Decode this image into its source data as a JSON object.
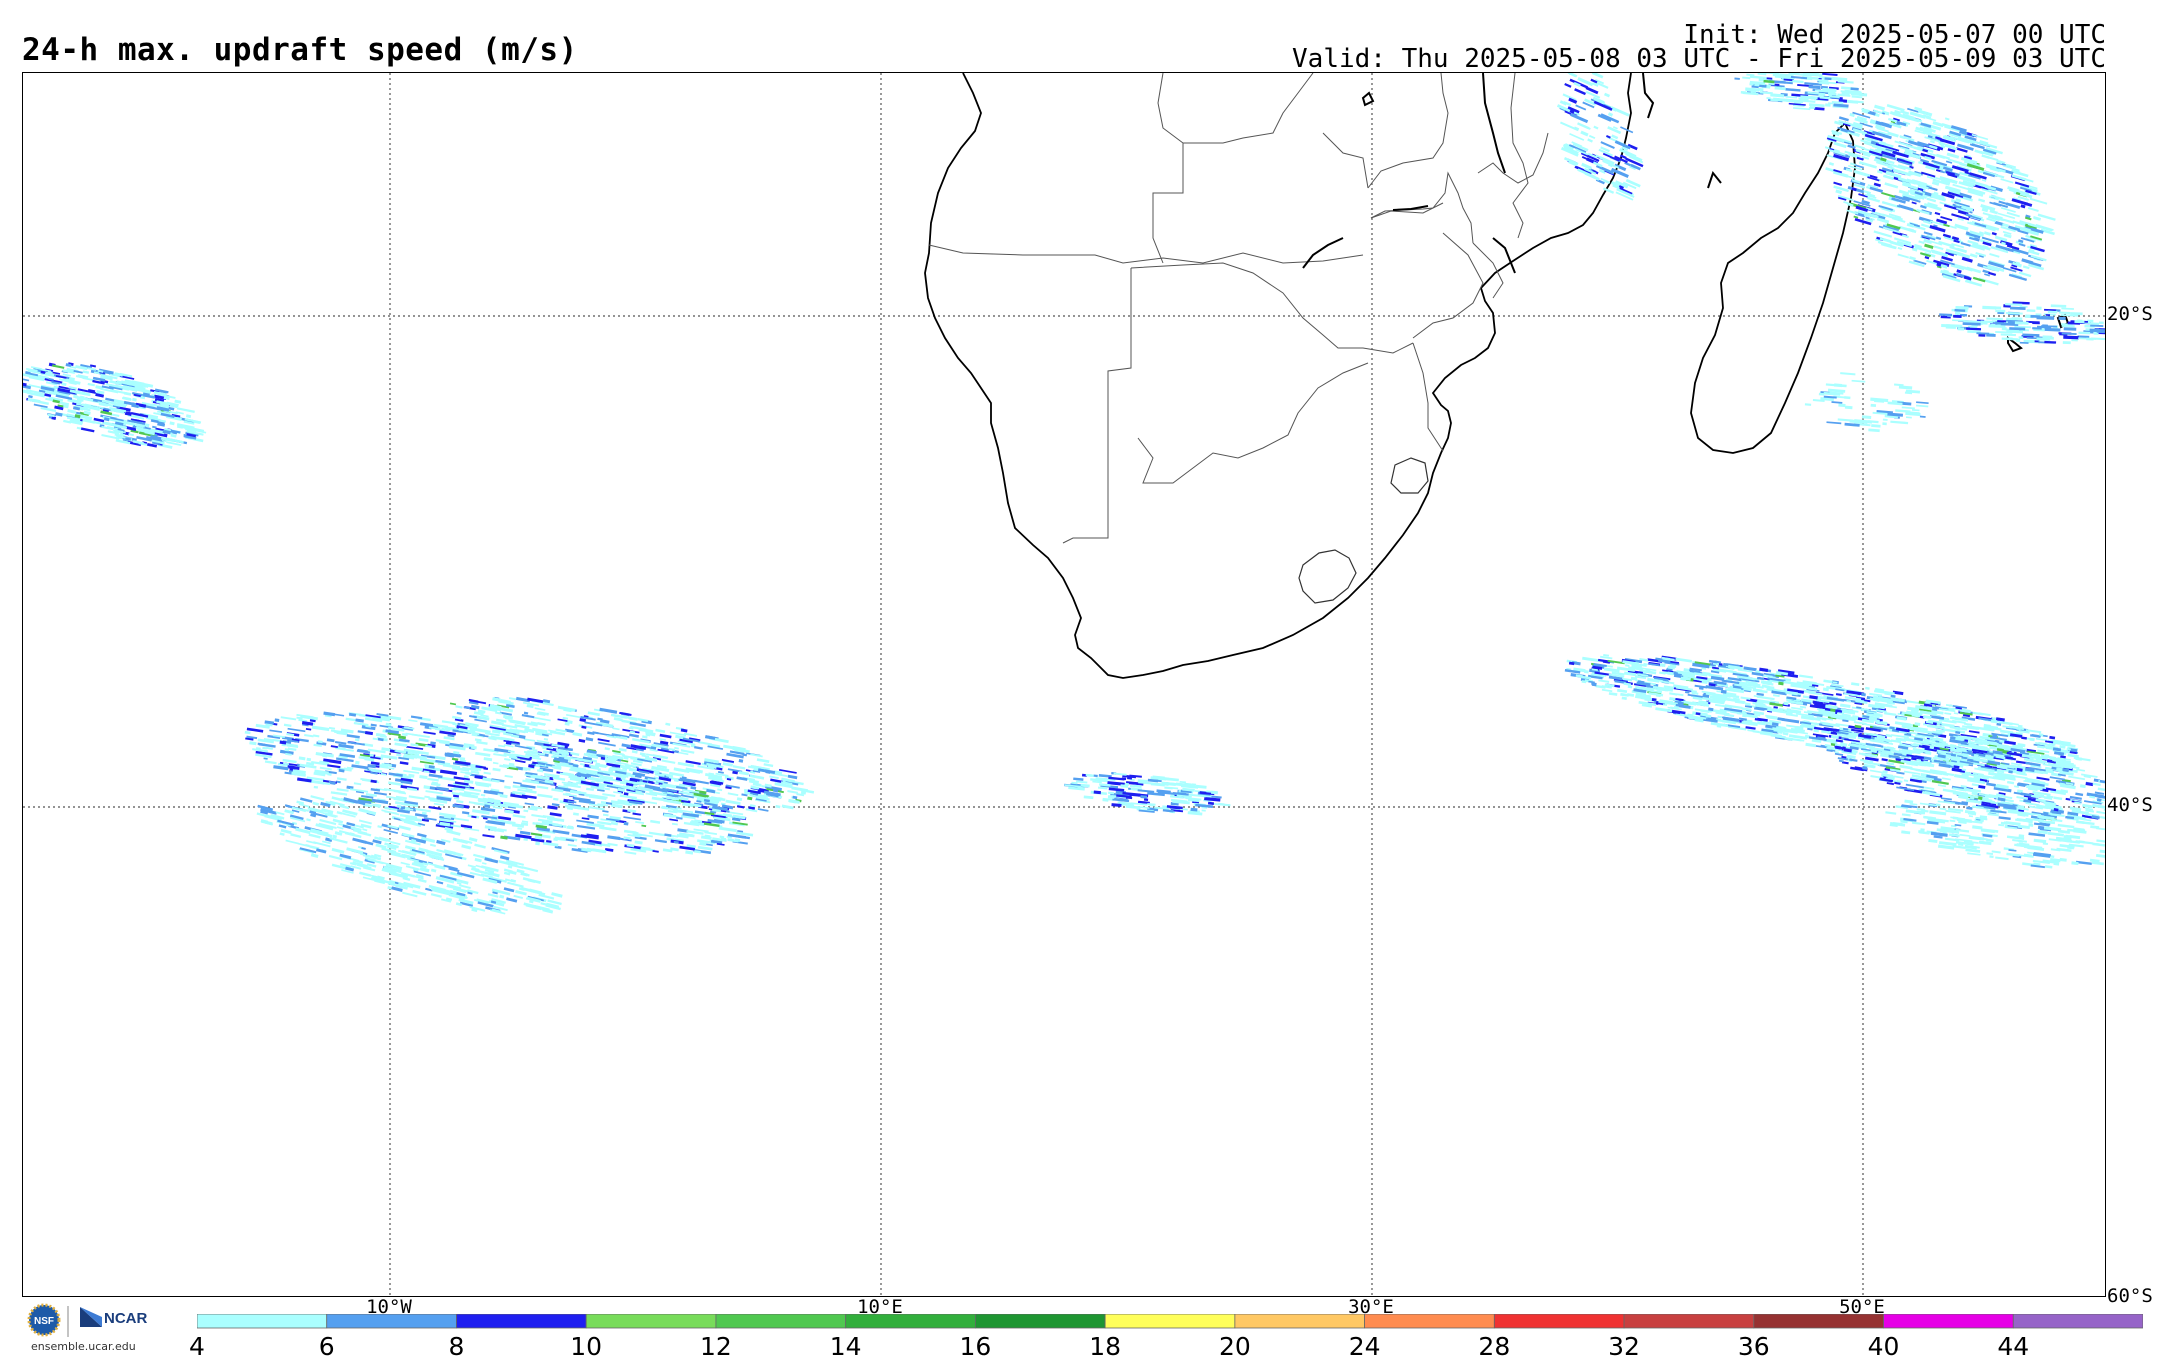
{
  "header": {
    "title": "24-h max. updraft speed (m/s)",
    "init": "Init: Wed 2025-05-07 00 UTC",
    "valid": "Valid: Thu 2025-05-08 03 UTC - Fri 2025-05-09 03 UTC"
  },
  "map": {
    "region": "Southern Africa and surrounding oceans",
    "lat_labels": [
      "20°S",
      "40°S",
      "60°S"
    ],
    "lon_labels": [
      "10°W",
      "10°E",
      "30°E",
      "50°E"
    ],
    "gridlines": true
  },
  "colorbar": {
    "labels": [
      "4",
      "6",
      "8",
      "10",
      "12",
      "14",
      "16",
      "18",
      "20",
      "24",
      "28",
      "32",
      "36",
      "40",
      "44"
    ],
    "colors": [
      "#aaffff",
      "#55a0f0",
      "#1e1ef0",
      "#78dc5a",
      "#50c850",
      "#32af3c",
      "#1e9632",
      "#ffff5a",
      "#ffc864",
      "#ff8c50",
      "#f03232",
      "#c84040",
      "#963232",
      "#e600e6",
      "#9664c8"
    ]
  },
  "logos": {
    "nsf": "NSF",
    "ncar": "NCAR",
    "site": "ensemble.ucar.edu"
  }
}
